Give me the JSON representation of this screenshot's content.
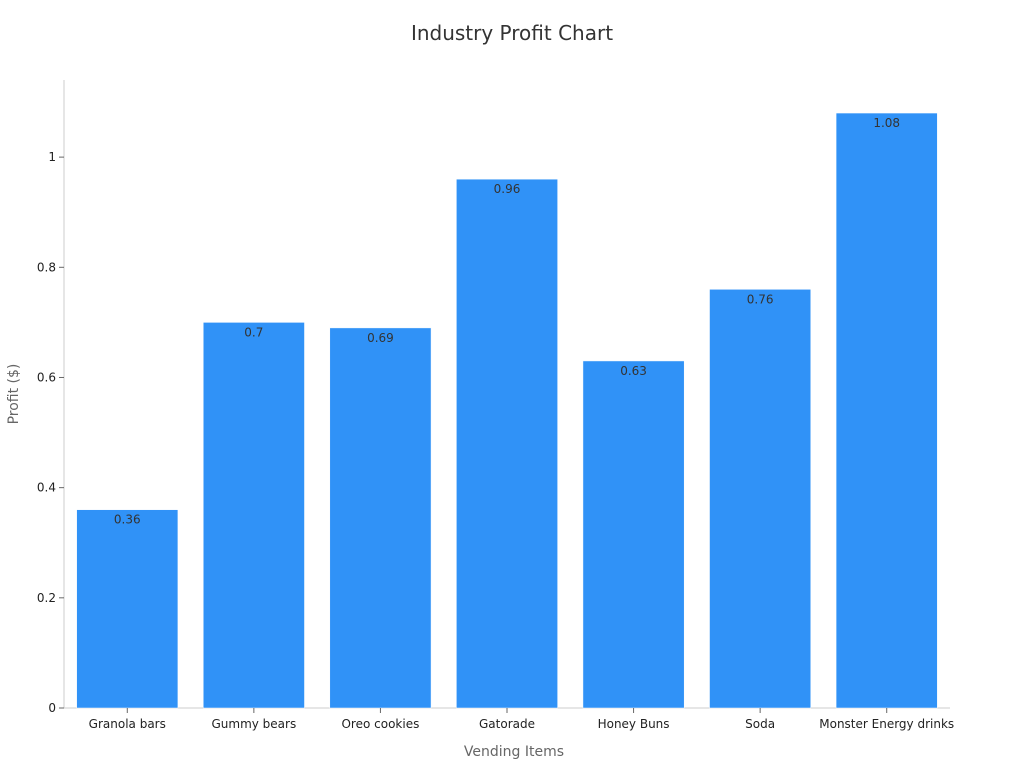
{
  "chart_data": {
    "type": "bar",
    "title": "Industry Profit Chart",
    "xlabel": "Vending Items",
    "ylabel": "Profit ($)",
    "categories": [
      "Granola bars",
      "Gummy bears",
      "Oreo cookies",
      "Gatorade",
      "Honey Buns",
      "Soda",
      "Monster Energy drinks"
    ],
    "values": [
      0.36,
      0.7,
      0.69,
      0.96,
      0.63,
      0.76,
      1.08
    ],
    "value_labels": [
      "0.36",
      "0.7",
      "0.69",
      "0.96",
      "0.63",
      "0.76",
      "1.08"
    ],
    "ylim": [
      0,
      1.14
    ],
    "yticks": [
      0,
      0.2,
      0.4,
      0.6,
      0.8,
      1
    ],
    "ytick_labels": [
      "0",
      "0.2",
      "0.4",
      "0.6",
      "0.8",
      "1"
    ],
    "grid": false,
    "legend": "none",
    "bar_color": "#3092f7"
  }
}
